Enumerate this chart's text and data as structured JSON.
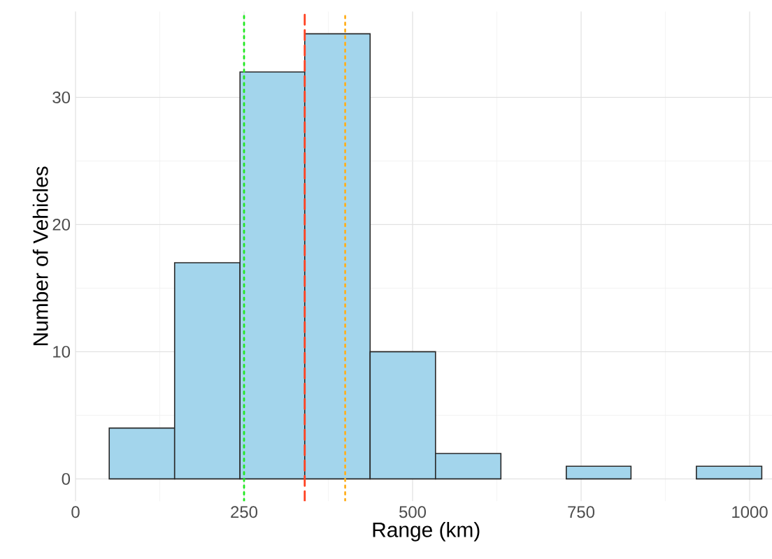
{
  "chart_data": {
    "type": "histogram",
    "xlabel": "Range (km)",
    "ylabel": "Number of Vehicles",
    "bins": [
      50,
      147,
      244,
      340,
      437,
      534,
      631,
      728,
      824,
      921,
      1018
    ],
    "values": [
      4,
      17,
      32,
      35,
      10,
      2,
      0,
      1,
      0,
      1
    ],
    "color": "#a3d5ec",
    "xlim": [
      0,
      1040
    ],
    "ylim": [
      -1.75,
      36.75
    ],
    "xticks": [
      0,
      250,
      500,
      750,
      1000
    ],
    "yticks": [
      0,
      10,
      20,
      30
    ],
    "grid": true,
    "ref_lines": [
      {
        "axis": "x",
        "value": 250,
        "color": "#22e822",
        "line_style": "dotted"
      },
      {
        "axis": "x",
        "value": 340,
        "color": "#ff4020",
        "line_style": "dashed"
      },
      {
        "axis": "x",
        "value": 400,
        "color": "#ffb020",
        "line_style": "dotted"
      }
    ]
  }
}
